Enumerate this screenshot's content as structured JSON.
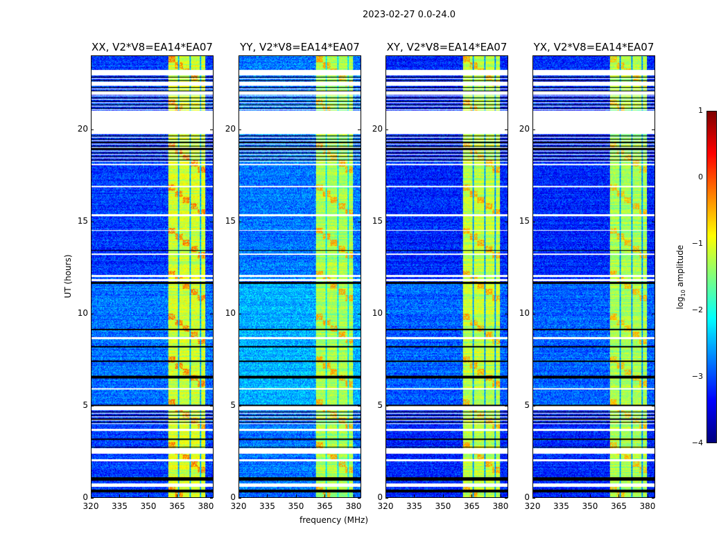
{
  "chart_data": {
    "type": "heatmap",
    "suptitle": "2023-02-27 0.0-24.0",
    "xlabel": "frequency (MHz)",
    "ylabel": "UT (hours)",
    "xlim": [
      320,
      384
    ],
    "ylim": [
      0,
      24
    ],
    "xticks": [
      320,
      335,
      350,
      365,
      380
    ],
    "yticks": [
      0,
      5,
      10,
      15,
      20
    ],
    "colorbar": {
      "label": "log10 amplitude",
      "label_main": "log",
      "label_sub": "10",
      "label_rest": " amplitude",
      "cmap": "jet",
      "vmin": -4,
      "vmax": 1,
      "ticks": [
        "1",
        "0",
        "−1",
        "−2",
        "−3",
        "−4"
      ]
    },
    "panels": [
      {
        "title": "XX, V2*V8=EA14*EA07",
        "background_level": -3.1,
        "band_level": -1.1,
        "hot_level": -0.2
      },
      {
        "title": "YY, V2*V8=EA14*EA07",
        "background_level": -2.8,
        "band_level": -1.3,
        "hot_level": -0.4
      },
      {
        "title": "XY, V2*V8=EA14*EA07",
        "background_level": -3.2,
        "band_level": -1.2,
        "hot_level": -0.4
      },
      {
        "title": "YX, V2*V8=EA14*EA07",
        "background_level": -3.2,
        "band_level": -1.3,
        "hot_level": -0.5
      }
    ],
    "band_mhz": [
      360.5,
      380
    ],
    "band_gaps_mhz": [
      366,
      372,
      377.5
    ],
    "flagged_white_hours": [
      [
        19.8,
        21.05
      ],
      [
        2.35,
        2.65
      ],
      [
        0.55,
        0.75
      ],
      [
        4.75,
        4.95
      ],
      [
        23.0,
        23.25
      ],
      [
        21.9,
        22.1
      ],
      [
        22.4,
        22.6
      ],
      [
        18.05,
        18.15
      ],
      [
        16.85,
        16.95
      ],
      [
        15.3,
        15.4
      ],
      [
        12.0,
        12.1
      ],
      [
        11.75,
        11.85
      ],
      [
        8.6,
        8.7
      ],
      [
        5.85,
        5.95
      ],
      [
        3.6,
        3.7
      ],
      [
        1.95,
        2.05
      ],
      [
        14.5,
        14.55
      ],
      [
        13.2,
        13.25
      ]
    ],
    "flagged_black_hours": [
      [
        0.9,
        1.1
      ],
      [
        0.25,
        0.4
      ],
      [
        4.95,
        5.05
      ],
      [
        6.45,
        6.6
      ],
      [
        7.35,
        7.45
      ],
      [
        8.15,
        8.22
      ],
      [
        9.1,
        9.15
      ],
      [
        11.6,
        11.7
      ],
      [
        13.4,
        13.45
      ],
      [
        18.9,
        19.0
      ],
      [
        19.3,
        19.35
      ],
      [
        3.1,
        3.2
      ],
      [
        4.2,
        4.28
      ],
      [
        2.7,
        2.75
      ]
    ],
    "striped_hours": [
      [
        21.05,
        23.0
      ],
      [
        4.0,
        4.8
      ],
      [
        18.2,
        19.8
      ]
    ]
  }
}
